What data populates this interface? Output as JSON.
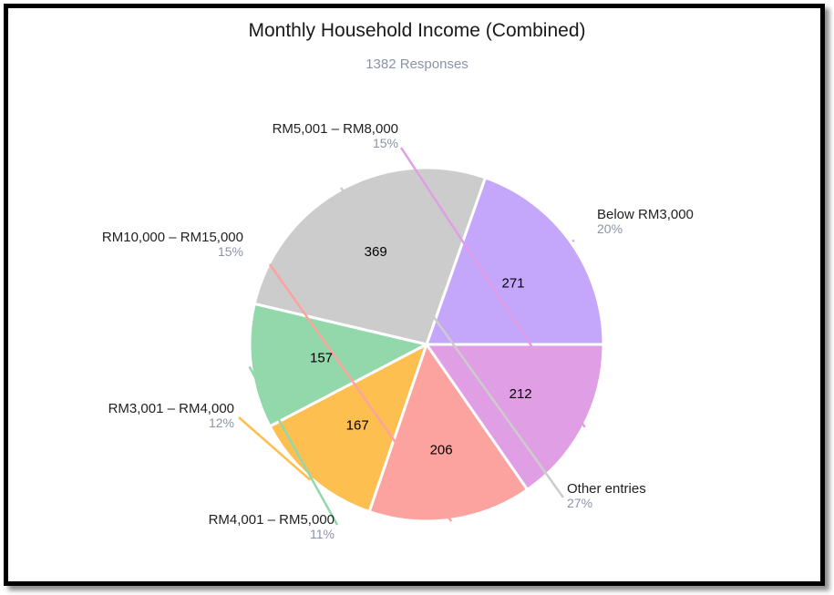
{
  "chart_data": {
    "type": "pie",
    "title": "Monthly Household Income (Combined)",
    "subtitle": "1382 Responses",
    "slices": [
      {
        "label": "Below RM3,000",
        "value": 271,
        "percent_label": "20%",
        "color": "#c4a7fb"
      },
      {
        "label": "Other entries",
        "value": 369,
        "percent_label": "27%",
        "color": "#cccccc"
      },
      {
        "label": "RM4,001 – RM5,000",
        "value": 157,
        "percent_label": "11%",
        "color": "#92d8aa"
      },
      {
        "label": "RM3,001 – RM4,000",
        "value": 167,
        "percent_label": "12%",
        "color": "#fdbf50"
      },
      {
        "label": "RM10,000 – RM15,000",
        "value": 206,
        "percent_label": "15%",
        "color": "#fca3a0"
      },
      {
        "label": "RM5,001 – RM8,000",
        "value": 212,
        "percent_label": "15%",
        "color": "#e09fe4"
      }
    ]
  }
}
